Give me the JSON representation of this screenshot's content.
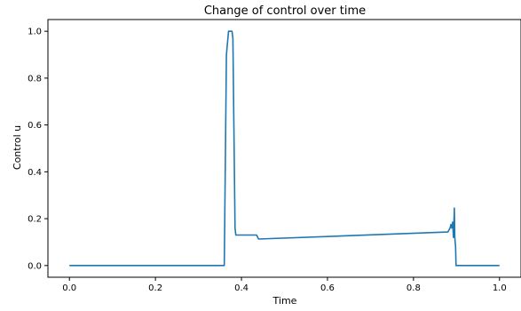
{
  "chart_data": {
    "type": "line",
    "title": "Change of control over time",
    "xlabel": "Time",
    "ylabel": "Control u",
    "xlim": [
      -0.05,
      1.05
    ],
    "ylim": [
      -0.05,
      1.05
    ],
    "grid": false,
    "legend": "none",
    "xticks": [
      0.0,
      0.2,
      0.4,
      0.6,
      0.8,
      1.0
    ],
    "xtick_labels": [
      "0.0",
      "0.2",
      "0.4",
      "0.6",
      "0.8",
      "1.0"
    ],
    "yticks": [
      0.0,
      0.2,
      0.4,
      0.6,
      0.8,
      1.0
    ],
    "ytick_labels": [
      "0.0",
      "0.2",
      "0.4",
      "0.6",
      "0.8",
      "1.0"
    ],
    "series": [
      {
        "color": "#1f77b4",
        "x": [
          0.0,
          0.36,
          0.365,
          0.37,
          0.378,
          0.38,
          0.383,
          0.385,
          0.387,
          0.39,
          0.435,
          0.44,
          0.88,
          0.885,
          0.887,
          0.889,
          0.891,
          0.893,
          0.895,
          0.896,
          0.898,
          0.899,
          0.9,
          1.0
        ],
        "y": [
          0.0,
          0.0,
          0.9,
          1.0,
          1.0,
          0.97,
          0.5,
          0.16,
          0.13,
          0.13,
          0.13,
          0.113,
          0.143,
          0.16,
          0.175,
          0.16,
          0.185,
          0.12,
          0.245,
          0.12,
          0.08,
          0.0,
          0.0,
          0.0
        ]
      }
    ]
  }
}
